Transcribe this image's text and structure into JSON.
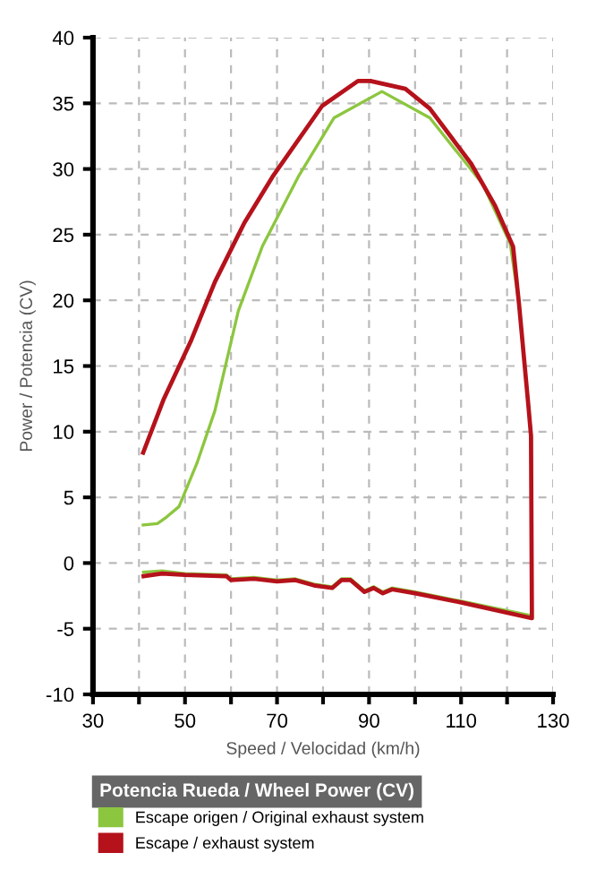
{
  "chart_data": {
    "type": "line",
    "xlabel": "Speed / Velocidad (km/h)",
    "ylabel": "Power / Potencia (CV)",
    "legend_title": "Potencia Rueda / Wheel Power (CV)",
    "xlim": [
      30,
      130
    ],
    "ylim": [
      -10,
      40
    ],
    "xticks": [
      30,
      {
        "value": 40,
        "label": null
      },
      50,
      {
        "value": 60,
        "label": null
      },
      70,
      {
        "value": 80,
        "label": null
      },
      90,
      {
        "value": 100,
        "label": null
      },
      110,
      {
        "value": 120,
        "label": null
      },
      130
    ],
    "yticks": [
      -10,
      -5,
      0,
      5,
      10,
      15,
      20,
      25,
      30,
      35,
      40
    ],
    "grid": true,
    "legend": "bottom",
    "line_style": "solid",
    "marker": "none",
    "series": [
      {
        "name": "Escape origen / Original exhaust system",
        "color": "#8cc63f",
        "x": [
          40.9,
          44,
          46,
          48.7,
          52.6,
          56.5,
          61.6,
          66.8,
          74.6,
          82.4,
          92.8,
          103.2,
          112.3,
          114.8,
          120.7,
          122.6,
          124.6,
          125.3,
          125.3,
          110,
          100,
          95,
          93,
          91,
          89,
          86,
          84,
          82,
          78,
          74,
          70,
          65,
          60,
          59,
          50,
          45,
          41
        ],
        "values": [
          2.9,
          3.0,
          3.5,
          4.3,
          7.6,
          11.6,
          19.2,
          24.1,
          29.4,
          33.9,
          35.9,
          33.9,
          29.9,
          28.8,
          24.3,
          19.7,
          12.1,
          9.5,
          -4.0,
          -2.9,
          -2.2,
          -1.9,
          -2.2,
          -1.8,
          -2.1,
          -1.2,
          -1.2,
          -1.8,
          -1.6,
          -1.2,
          -1.3,
          -1.1,
          -1.2,
          -0.9,
          -0.8,
          -0.6,
          -0.7
        ]
      },
      {
        "name": "Escape / exhaust system",
        "color": "#b5121b",
        "x": [
          40.9,
          45.4,
          51.4,
          56.5,
          62.9,
          69,
          79.8,
          87.6,
          90.3,
          97.9,
          103.2,
          112.2,
          117.4,
          121.3,
          122.6,
          124.6,
          125.2,
          125.4,
          110,
          100,
          95,
          93,
          91,
          89,
          86,
          84,
          82,
          78,
          74,
          70,
          65,
          60,
          59,
          50,
          45,
          41
        ],
        "values": [
          8.4,
          12.5,
          17.0,
          21.4,
          25.9,
          29.4,
          34.8,
          36.7,
          36.7,
          36.1,
          34.6,
          30.4,
          27.2,
          24.1,
          19.7,
          12.1,
          9.7,
          -4.2,
          -3.0,
          -2.3,
          -2.0,
          -2.3,
          -1.9,
          -2.2,
          -1.3,
          -1.3,
          -1.9,
          -1.7,
          -1.3,
          -1.4,
          -1.2,
          -1.3,
          -1.0,
          -0.9,
          -0.8,
          -1.0
        ]
      }
    ]
  }
}
